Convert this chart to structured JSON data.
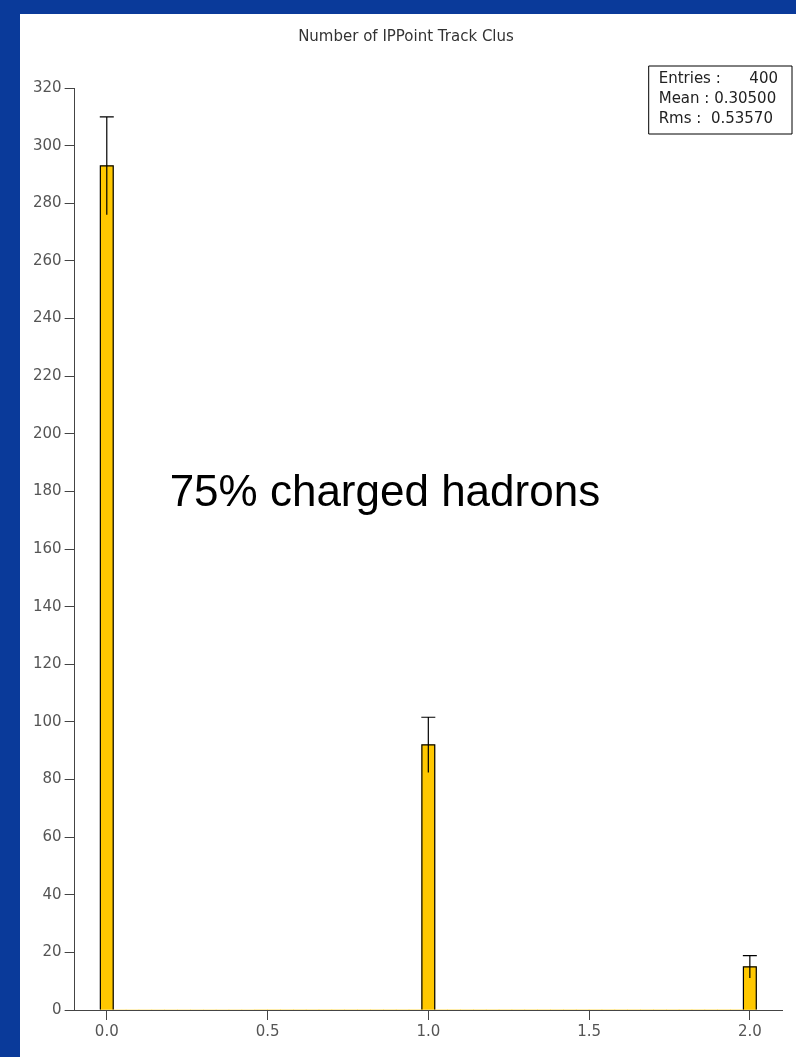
{
  "chart_data": {
    "type": "histogram",
    "title": "Number of IPPoint Track Clus",
    "bins": [
      -0.02,
      0.02,
      0.06,
      0.1,
      0.14,
      0.18,
      0.22,
      0.26,
      0.3,
      0.34,
      0.38,
      0.42,
      0.46,
      0.5,
      0.54,
      0.58,
      0.62,
      0.66,
      0.7,
      0.74,
      0.78,
      0.82,
      0.86,
      0.9,
      0.94,
      0.98,
      1.02,
      1.06,
      1.1,
      1.14,
      1.18,
      1.22,
      1.26,
      1.3,
      1.34,
      1.38,
      1.42,
      1.46,
      1.5,
      1.54,
      1.58,
      1.62,
      1.66,
      1.7,
      1.74,
      1.78,
      1.82,
      1.86,
      1.9,
      1.94,
      1.98,
      2.02
    ],
    "values": [
      293,
      0,
      0,
      0,
      0,
      0,
      0,
      0,
      0,
      0,
      0,
      0,
      0,
      0,
      0,
      0,
      0,
      0,
      0,
      0,
      0,
      0,
      0,
      0,
      0,
      92,
      0,
      0,
      0,
      0,
      0,
      0,
      0,
      0,
      0,
      0,
      0,
      0,
      0,
      0,
      0,
      0,
      0,
      0,
      0,
      0,
      0,
      0,
      0,
      0,
      15
    ],
    "errors": [
      17,
      null,
      null,
      null,
      null,
      null,
      null,
      null,
      null,
      null,
      null,
      null,
      null,
      null,
      null,
      null,
      null,
      null,
      null,
      null,
      null,
      null,
      null,
      null,
      null,
      9.6,
      null,
      null,
      null,
      null,
      null,
      null,
      null,
      null,
      null,
      null,
      null,
      null,
      null,
      null,
      null,
      null,
      null,
      null,
      null,
      null,
      null,
      null,
      null,
      null,
      3.9
    ],
    "color": "#ffc800",
    "xlim": [
      -0.1,
      2.1
    ],
    "xticks": [
      {
        "value": 0,
        "label": "0.0"
      },
      {
        "value": 0.5,
        "label": "0.5"
      },
      {
        "value": 1,
        "label": "1.0"
      },
      {
        "value": 1.5,
        "label": "1.5"
      },
      {
        "value": 2,
        "label": "2.0"
      }
    ],
    "ylim": [
      0,
      320
    ],
    "yticks": [
      0,
      20,
      40,
      60,
      80,
      100,
      120,
      140,
      160,
      180,
      200,
      220,
      240,
      260,
      280,
      300,
      320
    ],
    "grid": false,
    "legend": false,
    "annotations": [
      "Entries :      400",
      "Mean : 0.30500",
      "Rms :  0.53570",
      {
        "text": "75% charged hadrons"
      }
    ]
  }
}
